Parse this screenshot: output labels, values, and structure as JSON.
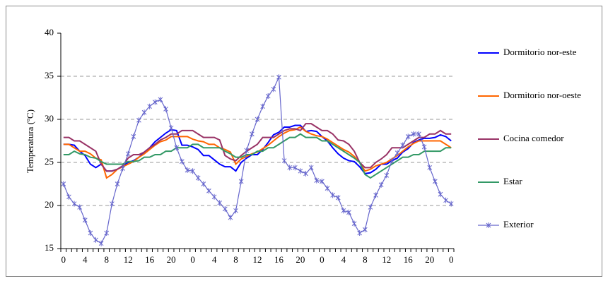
{
  "chart_data": {
    "type": "line",
    "y_label": "Temperatura (ºC)",
    "categories": [
      "0",
      null,
      null,
      null,
      "4",
      null,
      null,
      null,
      "8",
      null,
      null,
      null,
      "12",
      null,
      null,
      null,
      "16",
      null,
      null,
      null,
      "20",
      null,
      null,
      null,
      "0",
      null,
      null,
      null,
      "4",
      null,
      null,
      null,
      "8",
      null,
      null,
      null,
      "12",
      null,
      null,
      null,
      "16",
      null,
      null,
      null,
      "20",
      null,
      null,
      null,
      "0",
      null,
      null,
      null,
      "4",
      null,
      null,
      null,
      "8",
      null,
      null,
      null,
      "12",
      null,
      null,
      null,
      "16",
      null,
      null,
      null,
      "20",
      null,
      null,
      null,
      "0"
    ],
    "ylim": [
      15,
      40
    ],
    "yticks": [
      15,
      20,
      25,
      30,
      35,
      40
    ],
    "grid": true,
    "legend": "right",
    "series": [
      {
        "name": "Dormitorio nor-este",
        "color": "#0000ff",
        "values": [
          27.1,
          27.1,
          27,
          26.3,
          25.8,
          24.8,
          24.4,
          24.8,
          24,
          24,
          24.2,
          24.6,
          25,
          25.2,
          25.6,
          26.2,
          26.7,
          27.4,
          27.9,
          28.4,
          28.8,
          28.7,
          27,
          27,
          26.8,
          26.5,
          25.8,
          25.8,
          25.3,
          24.8,
          24.5,
          24.5,
          24,
          25,
          25.5,
          25.9,
          25.9,
          26.5,
          27.3,
          28.2,
          28.5,
          29.1,
          29.1,
          29.3,
          29.3,
          28.6,
          28.7,
          28.6,
          28,
          27.5,
          26.7,
          26,
          25.5,
          25.2,
          25.1,
          24.5,
          23.7,
          23.8,
          24.2,
          24.8,
          24.8,
          25.2,
          25.5,
          26.2,
          26.6,
          27.3,
          27.6,
          27.8,
          27.8,
          27.9,
          28.2,
          28,
          27.5
        ]
      },
      {
        "name": "Dormitorio nor-oeste",
        "color": "#ff6600",
        "values": [
          27.1,
          27.1,
          26.7,
          26.3,
          26.3,
          26,
          25.5,
          25.3,
          23.2,
          23.6,
          24.2,
          24.5,
          24.8,
          25.1,
          25.6,
          26,
          26.5,
          27,
          27.4,
          27.6,
          28,
          28,
          28,
          28,
          27.7,
          27.5,
          27.4,
          27.1,
          27.1,
          26.7,
          26.5,
          26.2,
          24.8,
          25.4,
          25.7,
          26,
          26.2,
          26.6,
          27,
          27.5,
          28,
          28.4,
          28.7,
          28.8,
          29.1,
          28.6,
          28.3,
          28.1,
          28,
          27.7,
          27.3,
          26.9,
          26.5,
          26.2,
          25.7,
          25,
          24,
          24.2,
          24.6,
          24.8,
          25,
          25.4,
          25.8,
          26.3,
          26.8,
          27.2,
          27.5,
          27.5,
          27.5,
          27.5,
          27.5,
          27.1,
          26.7
        ]
      },
      {
        "name": "Cocina comedor",
        "color": "#993366",
        "values": [
          27.9,
          27.9,
          27.5,
          27.5,
          27.1,
          26.7,
          26.3,
          24.8,
          24,
          24,
          24.2,
          24.6,
          25.5,
          25.9,
          25.9,
          26.2,
          26.7,
          27.1,
          27.6,
          27.9,
          28.3,
          28.3,
          28.7,
          28.7,
          28.7,
          28.3,
          27.9,
          27.9,
          27.9,
          27.6,
          25.8,
          25.4,
          25.2,
          25.8,
          26.3,
          26.7,
          27.1,
          27.9,
          27.9,
          27.9,
          28.3,
          28.7,
          28.9,
          28.9,
          28.7,
          29.5,
          29.5,
          29.1,
          28.7,
          28.7,
          28.3,
          27.6,
          27.5,
          27.1,
          26.3,
          25,
          24.4,
          24.4,
          25,
          25.4,
          25.9,
          26.7,
          26.7,
          26.7,
          27.1,
          27.5,
          27.9,
          27.9,
          28.3,
          28.3,
          28.7,
          28.3,
          28.3
        ]
      },
      {
        "name": "Estar",
        "color": "#339966",
        "values": [
          25.9,
          25.9,
          26.3,
          26,
          25.9,
          25.6,
          25.5,
          25.1,
          24.8,
          24.8,
          24.8,
          24.8,
          25.1,
          25.1,
          25.2,
          25.6,
          25.6,
          25.9,
          25.9,
          26.3,
          26.3,
          26.7,
          26.7,
          26.7,
          27.1,
          27.1,
          26.7,
          26.7,
          26.7,
          26.7,
          26.3,
          26,
          25.6,
          25.6,
          25.9,
          25.9,
          26.3,
          26.3,
          26.7,
          26.7,
          27.1,
          27.5,
          27.9,
          27.9,
          28.3,
          27.9,
          27.9,
          27.9,
          27.5,
          27.5,
          27.1,
          26.7,
          26.3,
          25.9,
          25.5,
          25,
          23.6,
          23.2,
          23.6,
          24,
          24.4,
          24.8,
          25.2,
          25.6,
          25.6,
          25.9,
          25.9,
          26.3,
          26.3,
          26.3,
          26.3,
          26.7,
          26.7
        ]
      },
      {
        "name": "Exterior",
        "color": "#6666cc",
        "marker": "star",
        "values": [
          22.5,
          21,
          20.2,
          19.8,
          18.3,
          16.8,
          16,
          15.6,
          16.8,
          20.2,
          22.5,
          24.3,
          26,
          28,
          29.9,
          30.8,
          31.5,
          32,
          32.3,
          31.2,
          29,
          26.7,
          25.1,
          24.1,
          24,
          23.2,
          22.5,
          21.7,
          21,
          20.3,
          19.6,
          18.6,
          19.4,
          22.8,
          26.4,
          28.3,
          30,
          31.5,
          32.7,
          33.5,
          34.9,
          25.2,
          24.4,
          24.4,
          24,
          23.7,
          24.4,
          22.9,
          22.8,
          22,
          21.2,
          20.9,
          19.4,
          19.2,
          17.9,
          16.8,
          17.2,
          19.8,
          21.2,
          22.4,
          23.5,
          25.2,
          26.1,
          27,
          28,
          28.3,
          28.3,
          26.8,
          24.4,
          22.8,
          21.3,
          20.6,
          20.2
        ]
      }
    ]
  }
}
